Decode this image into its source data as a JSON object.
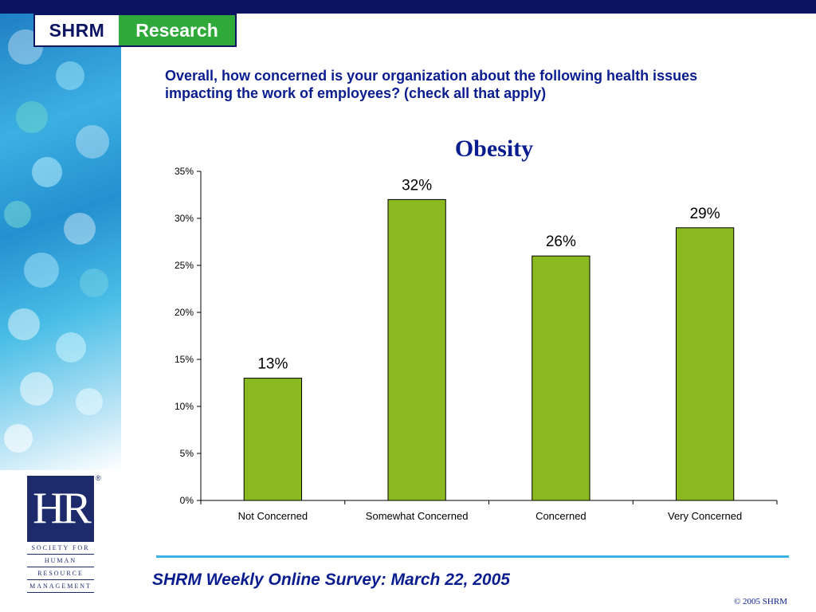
{
  "header": {
    "logo_left": "SHRM",
    "logo_right": "Research"
  },
  "question": "Overall, how concerned is your organization about the following health issues impacting the work of employees? (check all that apply)",
  "chart_data": {
    "type": "bar",
    "title": "Obesity",
    "categories": [
      "Not Concerned",
      "Somewhat Concerned",
      "Concerned",
      "Very Concerned"
    ],
    "values": [
      13,
      32,
      26,
      29
    ],
    "data_labels": [
      "13%",
      "32%",
      "26%",
      "29%"
    ],
    "yticks": [
      "0%",
      "5%",
      "10%",
      "15%",
      "20%",
      "25%",
      "30%",
      "35%"
    ],
    "ylim": [
      0,
      35
    ],
    "xlabel": "",
    "ylabel": "",
    "grid": false,
    "bar_color": "#8aba1f"
  },
  "hr_logo": {
    "letters": "HR",
    "lines": [
      "SOCIETY FOR",
      "HUMAN",
      "RESOURCE",
      "MANAGEMENT"
    ],
    "reg_mark": "®"
  },
  "footer": {
    "survey": "SHRM Weekly Online Survey: March 22, 2005",
    "copyright": "© 2005 SHRM"
  },
  "colors": {
    "navy": "#0a1462",
    "title_blue": "#0a1d8f",
    "research_green": "#2ea93a",
    "bar_green": "#8aba1f",
    "rule_cyan": "#3ab4e4"
  }
}
